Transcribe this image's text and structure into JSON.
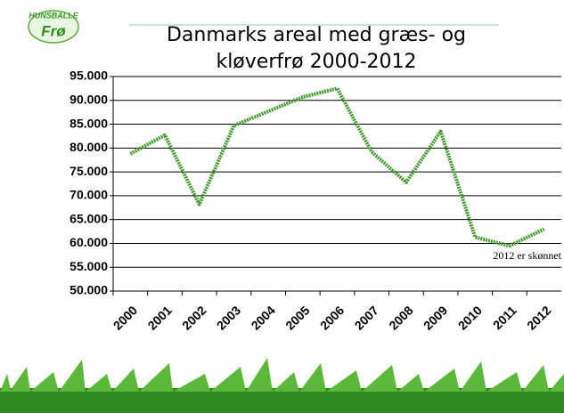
{
  "chart_data": {
    "type": "line",
    "logo": {
      "top": "HUNSBALLE",
      "bottom": "Frø"
    },
    "title": [
      "Danmarks areal med græs- og",
      "kløverfrø 2000-2012"
    ],
    "categories": [
      "2000",
      "2001",
      "2002",
      "2003",
      "2004",
      "2005",
      "2006",
      "2007",
      "2008",
      "2009",
      "2010",
      "2011",
      "2012"
    ],
    "values": [
      78800,
      82700,
      68200,
      84700,
      87700,
      90700,
      92500,
      79200,
      72800,
      83500,
      61300,
      59500,
      63000
    ],
    "color": "#3f9a2b",
    "ylim": [
      50000,
      95000
    ],
    "yticks": [
      {
        "value": 50000,
        "label": "50.000"
      },
      {
        "value": 55000,
        "label": "55.000"
      },
      {
        "value": 60000,
        "label": "60.000"
      },
      {
        "value": 65000,
        "label": "65.000"
      },
      {
        "value": 70000,
        "label": "70.000"
      },
      {
        "value": 75000,
        "label": "75.000"
      },
      {
        "value": 80000,
        "label": "80.000"
      },
      {
        "value": 85000,
        "label": "85.000"
      },
      {
        "value": 90000,
        "label": "90.000"
      },
      {
        "value": 95000,
        "label": "95.000"
      }
    ],
    "grid": true,
    "annotation": "2012 er skønnet"
  }
}
